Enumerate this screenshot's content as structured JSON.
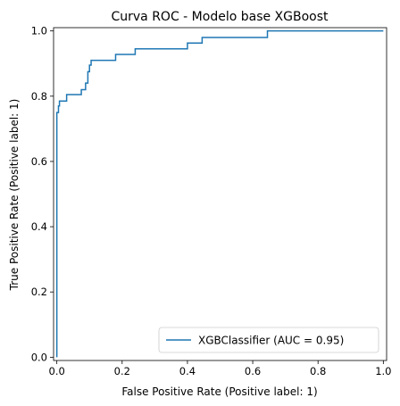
{
  "chart_data": {
    "type": "line",
    "title": "Curva ROC - Modelo base XGBoost",
    "xlabel": "False Positive Rate (Positive label: 1)",
    "ylabel": "True Positive Rate (Positive label: 1)",
    "xlim": [
      -0.01,
      1.01
    ],
    "ylim": [
      -0.01,
      1.01
    ],
    "grid": false,
    "legend": "lower-right",
    "x_ticks": [
      {
        "value": 0.0,
        "label": "0.0"
      },
      {
        "value": 0.2,
        "label": "0.2"
      },
      {
        "value": 0.4,
        "label": "0.4"
      },
      {
        "value": 0.6,
        "label": "0.6"
      },
      {
        "value": 0.8,
        "label": "0.8"
      },
      {
        "value": 1.0,
        "label": "1.0"
      }
    ],
    "y_ticks": [
      {
        "value": 0.0,
        "label": "0.0"
      },
      {
        "value": 0.2,
        "label": "0.2"
      },
      {
        "value": 0.4,
        "label": "0.4"
      },
      {
        "value": 0.6,
        "label": "0.6"
      },
      {
        "value": 0.8,
        "label": "0.8"
      },
      {
        "value": 1.0,
        "label": "1.0"
      }
    ],
    "series": [
      {
        "name": "XGBClassifier (AUC = 0.95)",
        "color": "#1f77b4",
        "x": [
          0.0,
          0.0,
          0.005,
          0.005,
          0.008,
          0.008,
          0.012,
          0.012,
          0.03,
          0.03,
          0.075,
          0.075,
          0.088,
          0.088,
          0.095,
          0.095,
          0.1,
          0.1,
          0.105,
          0.105,
          0.18,
          0.18,
          0.24,
          0.24,
          0.4,
          0.4,
          0.445,
          0.445,
          0.645,
          0.645,
          1.0
        ],
        "y": [
          0.0,
          0.75,
          0.75,
          0.77,
          0.77,
          0.785,
          0.785,
          0.785,
          0.785,
          0.805,
          0.805,
          0.82,
          0.82,
          0.84,
          0.84,
          0.875,
          0.875,
          0.895,
          0.895,
          0.91,
          0.91,
          0.928,
          0.928,
          0.945,
          0.945,
          0.963,
          0.963,
          0.98,
          0.98,
          1.0,
          1.0
        ]
      }
    ]
  }
}
